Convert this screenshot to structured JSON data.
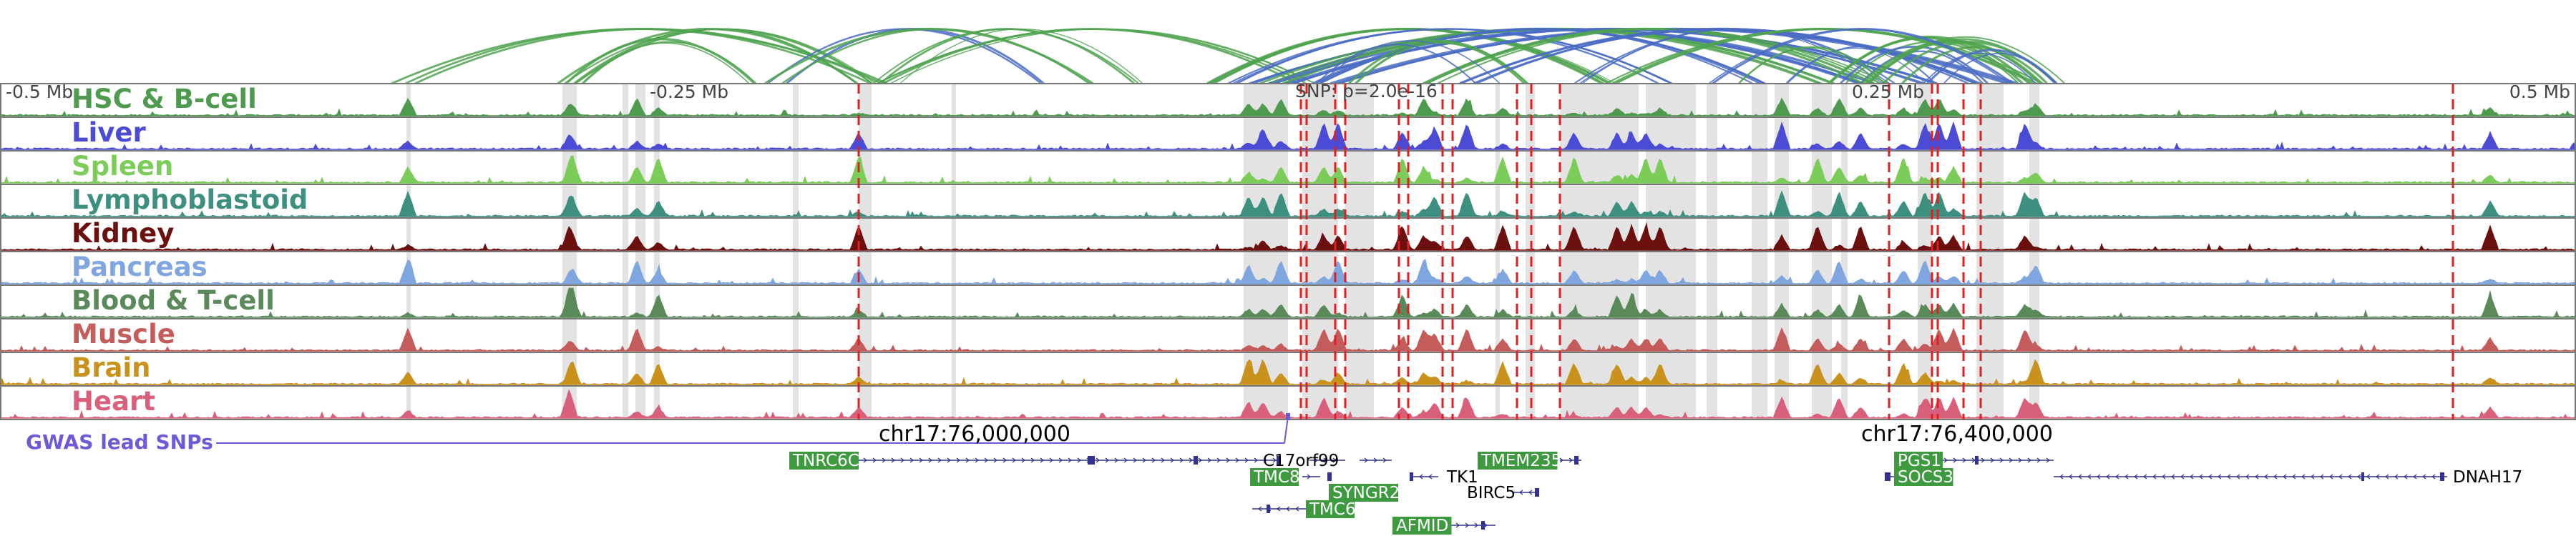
{
  "scale": {
    "labels": [
      "-0.5 Mb",
      "-0.25 Mb",
      "0.25 Mb",
      "0.5 Mb"
    ],
    "snp_text": "SNP: p=2.0e-16"
  },
  "tracks": [
    {
      "name": "HSC & B-cell",
      "color": "#4e9a4e"
    },
    {
      "name": "Liver",
      "color": "#4b4bd6"
    },
    {
      "name": "Spleen",
      "color": "#7ccc5a"
    },
    {
      "name": "Lymphoblastoid",
      "color": "#3d8f80"
    },
    {
      "name": "Kidney",
      "color": "#6b0f0f"
    },
    {
      "name": "Pancreas",
      "color": "#7fa6de"
    },
    {
      "name": "Blood & T-cell",
      "color": "#5a8a5a"
    },
    {
      "name": "Muscle",
      "color": "#c55c5c"
    },
    {
      "name": "Brain",
      "color": "#c8921d"
    },
    {
      "name": "Heart",
      "color": "#d8607a"
    }
  ],
  "gwas_label": "GWAS lead SNPs",
  "coordinates": [
    "chr17:76,000,000",
    "chr17:76,400,000"
  ],
  "genes": [
    {
      "name": "TNRC6C",
      "boxed": true
    },
    {
      "name": "C17orf99",
      "boxed": false
    },
    {
      "name": "TMC8",
      "boxed": true
    },
    {
      "name": "TMEM235",
      "boxed": true
    },
    {
      "name": "SYNGR2",
      "boxed": true
    },
    {
      "name": "TK1",
      "boxed": false
    },
    {
      "name": "BIRC5",
      "boxed": false
    },
    {
      "name": "TMC6",
      "boxed": true
    },
    {
      "name": "AFMID",
      "boxed": true
    },
    {
      "name": "PGS1",
      "boxed": true
    },
    {
      "name": "SOCS3",
      "boxed": true
    },
    {
      "name": "DNAH17",
      "boxed": false
    }
  ],
  "colors": {
    "gene_box": "#3e9a3e",
    "gene_line": "#33338f",
    "red_dash": "#e02020",
    "arc_green": "#4fa34f",
    "arc_blue": "#4a6cc4",
    "gwas": "#6b5bd6"
  }
}
